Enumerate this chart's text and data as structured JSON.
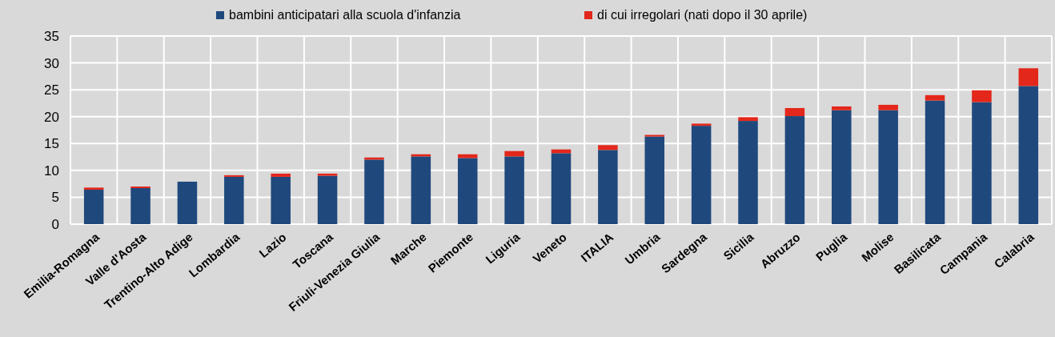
{
  "chart_data": {
    "type": "bar",
    "stacked": true,
    "legend": "top",
    "grid": true,
    "categories": [
      "Emilia-Romagna",
      "Valle d'Aosta",
      "Trentino-Alto Adige",
      "Lombardia",
      "Lazio",
      "Toscana",
      "Friuli-Venezia Giulia",
      "Marche",
      "Piemonte",
      "Liguria",
      "Veneto",
      "ITALIA",
      "Umbria",
      "Sardegna",
      "Sicilia",
      "Abruzzo",
      "Puglia",
      "Molise",
      "Basilicata",
      "Campania",
      "Calabria"
    ],
    "series": [
      {
        "name": "bambini anticipatari alla scuola d'infanzia",
        "color": "#1f497d",
        "values": [
          6.4,
          6.7,
          7.9,
          8.8,
          8.8,
          9.0,
          12.0,
          12.6,
          12.3,
          12.6,
          13.2,
          13.8,
          16.3,
          18.3,
          19.2,
          20.1,
          21.2,
          21.2,
          23.0,
          22.7,
          25.7
        ]
      },
      {
        "name": "di cui irregolari (nati dopo il 30 aprile)",
        "color": "#e3271b",
        "values": [
          0.4,
          0.3,
          0,
          0.3,
          0.6,
          0.4,
          0.4,
          0.4,
          0.7,
          1.0,
          0.7,
          0.9,
          0.3,
          0.4,
          0.7,
          1.5,
          0.7,
          1.0,
          1.0,
          2.2,
          3.3
        ]
      }
    ],
    "ylim": [
      0,
      35
    ],
    "yticks": [
      0,
      5,
      10,
      15,
      20,
      25,
      30,
      35
    ]
  }
}
